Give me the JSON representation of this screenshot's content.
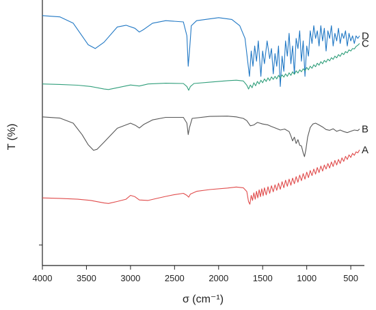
{
  "chart_data": {
    "type": "line",
    "title": "",
    "xlabel": "σ (cm⁻¹)",
    "ylabel": "T (%)",
    "xlim": [
      4000,
      400
    ],
    "x_reversed": true,
    "x_ticks": [
      4000,
      3500,
      3000,
      2500,
      2000,
      1500,
      1000,
      500
    ],
    "y_ticks_labeled": false,
    "ylim": [
      0,
      100
    ],
    "grid": false,
    "legend": "inline labels at right end of each curve",
    "series": [
      {
        "name": "D",
        "color": "#1f77c4",
        "points": [
          [
            4000,
            96
          ],
          [
            3800,
            95.5
          ],
          [
            3650,
            93
          ],
          [
            3550,
            88
          ],
          [
            3480,
            84.5
          ],
          [
            3400,
            83
          ],
          [
            3300,
            85.5
          ],
          [
            3150,
            91.5
          ],
          [
            3050,
            92.2
          ],
          [
            2950,
            91
          ],
          [
            2900,
            89.5
          ],
          [
            2850,
            90.5
          ],
          [
            2750,
            93
          ],
          [
            2600,
            94
          ],
          [
            2400,
            93.5
          ],
          [
            2360,
            88
          ],
          [
            2345,
            76
          ],
          [
            2330,
            82
          ],
          [
            2310,
            92
          ],
          [
            2250,
            94
          ],
          [
            2000,
            95.2
          ],
          [
            1850,
            94.5
          ],
          [
            1760,
            92
          ],
          [
            1700,
            87
          ],
          [
            1650,
            72
          ],
          [
            1630,
            82
          ],
          [
            1610,
            76
          ],
          [
            1590,
            84
          ],
          [
            1570,
            78
          ],
          [
            1550,
            86
          ],
          [
            1520,
            72
          ],
          [
            1500,
            82
          ],
          [
            1480,
            77
          ],
          [
            1450,
            86
          ],
          [
            1420,
            79
          ],
          [
            1400,
            83
          ],
          [
            1380,
            73
          ],
          [
            1360,
            81
          ],
          [
            1340,
            76
          ],
          [
            1320,
            84
          ],
          [
            1300,
            68
          ],
          [
            1280,
            80
          ],
          [
            1260,
            74
          ],
          [
            1240,
            86
          ],
          [
            1220,
            80
          ],
          [
            1200,
            89
          ],
          [
            1180,
            77
          ],
          [
            1160,
            84
          ],
          [
            1140,
            73
          ],
          [
            1120,
            87
          ],
          [
            1100,
            83
          ],
          [
            1080,
            90
          ],
          [
            1060,
            78
          ],
          [
            1040,
            86
          ],
          [
            1020,
            72
          ],
          [
            1000,
            84
          ],
          [
            980,
            80
          ],
          [
            960,
            90
          ],
          [
            940,
            85
          ],
          [
            920,
            92
          ],
          [
            900,
            87
          ],
          [
            880,
            90
          ],
          [
            860,
            84
          ],
          [
            840,
            92
          ],
          [
            820,
            86
          ],
          [
            800,
            91
          ],
          [
            780,
            82
          ],
          [
            760,
            90
          ],
          [
            740,
            87
          ],
          [
            720,
            92
          ],
          [
            700,
            84
          ],
          [
            680,
            89
          ],
          [
            660,
            86
          ],
          [
            640,
            91
          ],
          [
            620,
            85
          ],
          [
            600,
            89
          ],
          [
            580,
            87
          ],
          [
            560,
            90
          ],
          [
            540,
            84
          ],
          [
            520,
            89
          ],
          [
            500,
            86
          ],
          [
            480,
            88
          ],
          [
            460,
            85
          ],
          [
            440,
            88
          ],
          [
            420,
            87
          ],
          [
            400,
            88
          ]
        ]
      },
      {
        "name": "C",
        "color": "#2f9e7a",
        "points": [
          [
            4000,
            69
          ],
          [
            3800,
            68.8
          ],
          [
            3600,
            68.5
          ],
          [
            3450,
            68
          ],
          [
            3300,
            67
          ],
          [
            3250,
            66.8
          ],
          [
            3150,
            67.5
          ],
          [
            3000,
            68.6
          ],
          [
            2900,
            68.2
          ],
          [
            2800,
            69
          ],
          [
            2600,
            69.3
          ],
          [
            2400,
            69.2
          ],
          [
            2360,
            68
          ],
          [
            2340,
            66.5
          ],
          [
            2320,
            68
          ],
          [
            2280,
            69.2
          ],
          [
            2100,
            69.7
          ],
          [
            1900,
            70.3
          ],
          [
            1800,
            70.5
          ],
          [
            1720,
            70.2
          ],
          [
            1680,
            68.5
          ],
          [
            1660,
            67
          ],
          [
            1640,
            68.6
          ],
          [
            1620,
            67.5
          ],
          [
            1600,
            69.5
          ],
          [
            1580,
            68.3
          ],
          [
            1560,
            70
          ],
          [
            1540,
            69
          ],
          [
            1520,
            70.5
          ],
          [
            1500,
            69.5
          ],
          [
            1480,
            71
          ],
          [
            1460,
            70
          ],
          [
            1440,
            71.4
          ],
          [
            1420,
            70.3
          ],
          [
            1400,
            71.8
          ],
          [
            1380,
            70.8
          ],
          [
            1360,
            72
          ],
          [
            1340,
            71
          ],
          [
            1320,
            72.4
          ],
          [
            1300,
            71.3
          ],
          [
            1280,
            72.6
          ],
          [
            1260,
            71.7
          ],
          [
            1240,
            73
          ],
          [
            1220,
            72
          ],
          [
            1200,
            73.4
          ],
          [
            1180,
            72.4
          ],
          [
            1160,
            73.8
          ],
          [
            1140,
            72.8
          ],
          [
            1120,
            74.2
          ],
          [
            1100,
            73.3
          ],
          [
            1080,
            74.6
          ],
          [
            1060,
            73.8
          ],
          [
            1040,
            75
          ],
          [
            1020,
            74.2
          ],
          [
            1000,
            75.5
          ],
          [
            980,
            74.6
          ],
          [
            960,
            76
          ],
          [
            940,
            75.2
          ],
          [
            920,
            76.6
          ],
          [
            900,
            75.8
          ],
          [
            880,
            77.2
          ],
          [
            860,
            76.4
          ],
          [
            840,
            77.8
          ],
          [
            820,
            77
          ],
          [
            800,
            78.3
          ],
          [
            780,
            77.6
          ],
          [
            760,
            78.8
          ],
          [
            740,
            78.1
          ],
          [
            720,
            79.4
          ],
          [
            700,
            78.7
          ],
          [
            680,
            80
          ],
          [
            660,
            79.3
          ],
          [
            640,
            80.6
          ],
          [
            620,
            79.9
          ],
          [
            600,
            81.2
          ],
          [
            580,
            80.6
          ],
          [
            560,
            81.8
          ],
          [
            540,
            81.3
          ],
          [
            520,
            82.5
          ],
          [
            500,
            82
          ],
          [
            480,
            83
          ],
          [
            460,
            82.8
          ],
          [
            440,
            83.8
          ],
          [
            420,
            84.3
          ],
          [
            400,
            85
          ]
        ]
      },
      {
        "name": "B",
        "color": "#555555",
        "points": [
          [
            4000,
            56
          ],
          [
            3800,
            55.5
          ],
          [
            3650,
            53.5
          ],
          [
            3550,
            49
          ],
          [
            3480,
            45
          ],
          [
            3420,
            42.8
          ],
          [
            3380,
            43.2
          ],
          [
            3300,
            46
          ],
          [
            3150,
            51.5
          ],
          [
            3000,
            53.5
          ],
          [
            2940,
            52.6
          ],
          [
            2900,
            51.6
          ],
          [
            2850,
            53
          ],
          [
            2750,
            54.8
          ],
          [
            2600,
            55.8
          ],
          [
            2400,
            55.8
          ],
          [
            2360,
            53.5
          ],
          [
            2345,
            49
          ],
          [
            2330,
            51.8
          ],
          [
            2300,
            55.4
          ],
          [
            2100,
            56.2
          ],
          [
            1900,
            56.3
          ],
          [
            1800,
            56
          ],
          [
            1720,
            55.4
          ],
          [
            1680,
            54.5
          ],
          [
            1640,
            52.5
          ],
          [
            1600,
            52.8
          ],
          [
            1560,
            53.8
          ],
          [
            1500,
            53.2
          ],
          [
            1440,
            52.8
          ],
          [
            1400,
            52.2
          ],
          [
            1350,
            51.5
          ],
          [
            1300,
            50.8
          ],
          [
            1250,
            51.2
          ],
          [
            1200,
            50.2
          ],
          [
            1180,
            48.5
          ],
          [
            1160,
            46.5
          ],
          [
            1140,
            48
          ],
          [
            1120,
            45.5
          ],
          [
            1100,
            47
          ],
          [
            1080,
            44.8
          ],
          [
            1060,
            44.5
          ],
          [
            1040,
            41.8
          ],
          [
            1025,
            40.3
          ],
          [
            1010,
            43
          ],
          [
            990,
            48
          ],
          [
            960,
            51.8
          ],
          [
            930,
            53.2
          ],
          [
            900,
            53.5
          ],
          [
            860,
            52.8
          ],
          [
            820,
            52
          ],
          [
            780,
            51
          ],
          [
            740,
            50.7
          ],
          [
            700,
            51.3
          ],
          [
            660,
            50.3
          ],
          [
            620,
            50.8
          ],
          [
            580,
            50.2
          ],
          [
            540,
            49.8
          ],
          [
            500,
            50.3
          ],
          [
            460,
            50.8
          ],
          [
            420,
            50.6
          ],
          [
            400,
            51.2
          ]
        ]
      },
      {
        "name": "A",
        "color": "#e04a4a",
        "points": [
          [
            4000,
            24
          ],
          [
            3800,
            23.8
          ],
          [
            3600,
            23.5
          ],
          [
            3450,
            23
          ],
          [
            3300,
            22
          ],
          [
            3250,
            21.8
          ],
          [
            3150,
            22.6
          ],
          [
            3050,
            23.5
          ],
          [
            3000,
            25
          ],
          [
            2950,
            24.5
          ],
          [
            2900,
            23.2
          ],
          [
            2800,
            23
          ],
          [
            2700,
            23.8
          ],
          [
            2600,
            24.6
          ],
          [
            2500,
            25.3
          ],
          [
            2400,
            25.8
          ],
          [
            2360,
            25
          ],
          [
            2340,
            24.3
          ],
          [
            2320,
            25.5
          ],
          [
            2250,
            26.6
          ],
          [
            2100,
            27.3
          ],
          [
            1900,
            27.9
          ],
          [
            1800,
            28.3
          ],
          [
            1720,
            28
          ],
          [
            1680,
            26.5
          ],
          [
            1660,
            22.5
          ],
          [
            1645,
            21.5
          ],
          [
            1630,
            25
          ],
          [
            1615,
            23
          ],
          [
            1600,
            26
          ],
          [
            1585,
            23.5
          ],
          [
            1570,
            26.6
          ],
          [
            1555,
            24
          ],
          [
            1540,
            27.2
          ],
          [
            1525,
            24.5
          ],
          [
            1510,
            27.6
          ],
          [
            1495,
            24.8
          ],
          [
            1480,
            28
          ],
          [
            1460,
            25.2
          ],
          [
            1440,
            28.4
          ],
          [
            1420,
            25.8
          ],
          [
            1400,
            28.8
          ],
          [
            1380,
            26.4
          ],
          [
            1360,
            29.2
          ],
          [
            1340,
            27
          ],
          [
            1320,
            29.8
          ],
          [
            1300,
            27.4
          ],
          [
            1280,
            30.4
          ],
          [
            1260,
            28
          ],
          [
            1240,
            31
          ],
          [
            1220,
            28.6
          ],
          [
            1200,
            31.4
          ],
          [
            1180,
            29
          ],
          [
            1160,
            31.8
          ],
          [
            1140,
            29.6
          ],
          [
            1120,
            32.4
          ],
          [
            1100,
            30.2
          ],
          [
            1080,
            33
          ],
          [
            1060,
            30.8
          ],
          [
            1040,
            33.6
          ],
          [
            1020,
            31.4
          ],
          [
            1000,
            34.2
          ],
          [
            980,
            32
          ],
          [
            960,
            34.8
          ],
          [
            940,
            32.8
          ],
          [
            920,
            35.4
          ],
          [
            900,
            33.4
          ],
          [
            880,
            36
          ],
          [
            860,
            34
          ],
          [
            840,
            36.6
          ],
          [
            820,
            34.6
          ],
          [
            800,
            37
          ],
          [
            780,
            35.4
          ],
          [
            760,
            37.6
          ],
          [
            740,
            35.8
          ],
          [
            720,
            38.2
          ],
          [
            700,
            36.4
          ],
          [
            680,
            38.8
          ],
          [
            660,
            37
          ],
          [
            640,
            39.2
          ],
          [
            620,
            37.6
          ],
          [
            600,
            39.8
          ],
          [
            580,
            38.4
          ],
          [
            560,
            40.4
          ],
          [
            540,
            39.2
          ],
          [
            520,
            41
          ],
          [
            500,
            40
          ],
          [
            480,
            41.6
          ],
          [
            460,
            40.8
          ],
          [
            440,
            42.2
          ],
          [
            420,
            41.8
          ],
          [
            400,
            43
          ]
        ]
      }
    ]
  }
}
